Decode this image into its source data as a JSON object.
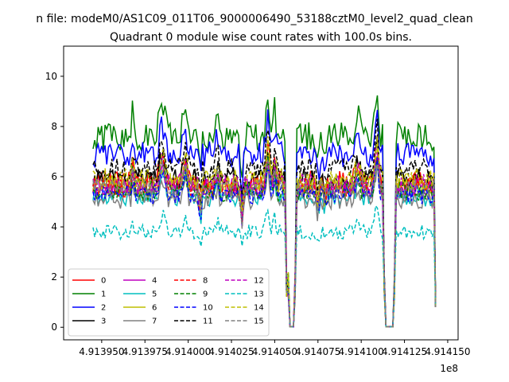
{
  "page": {
    "suptitle": "n file: modeM0/AS1C09_011T06_9000006490_53188cztM0_level2_quad_clean"
  },
  "chart_data": {
    "type": "line",
    "title": "Quadrant 0 module wise count rates with 100.0s bins.",
    "xlabel": "",
    "ylabel": "",
    "x_offset_label": "1e8",
    "x_tick_labels": [
      "4.913950",
      "4.913975",
      "4.914000",
      "4.914025",
      "4.914050",
      "4.914075",
      "4.914100",
      "4.914125",
      "4.914150"
    ],
    "x_tick_values": [
      4.91395,
      4.913975,
      4.914,
      4.914025,
      4.91405,
      4.914075,
      4.9141,
      4.914125,
      4.91415
    ],
    "xlim": [
      4.913928,
      4.914156
    ],
    "x_range_data": [
      4.913945,
      4.914143
    ],
    "gap_ranges": [
      [
        4.914058,
        4.914061
      ],
      [
        4.914114,
        4.914119
      ]
    ],
    "y_tick_labels": [
      "0",
      "2",
      "4",
      "6",
      "8",
      "10"
    ],
    "y_tick_values": [
      0,
      2,
      4,
      6,
      8,
      10
    ],
    "ylim": [
      -0.5,
      11.2
    ],
    "grid": false,
    "legend": {
      "placement": "lower-left",
      "columns": 4
    },
    "series": [
      {
        "name": "0",
        "color": "#ff0000",
        "dash": "solid",
        "mean": 5.8
      },
      {
        "name": "1",
        "color": "#008000",
        "dash": "solid",
        "mean": 7.6
      },
      {
        "name": "2",
        "color": "#0000ff",
        "dash": "solid",
        "mean": 6.9
      },
      {
        "name": "3",
        "color": "#000000",
        "dash": "solid",
        "mean": 5.9
      },
      {
        "name": "4",
        "color": "#bf00bf",
        "dash": "solid",
        "mean": 5.5
      },
      {
        "name": "5",
        "color": "#00bfbf",
        "dash": "solid",
        "mean": 5.2
      },
      {
        "name": "6",
        "color": "#bfbf00",
        "dash": "solid",
        "mean": 5.6
      },
      {
        "name": "7",
        "color": "#808080",
        "dash": "solid",
        "mean": 5.1
      },
      {
        "name": "8",
        "color": "#ff0000",
        "dash": "dashed",
        "mean": 5.6
      },
      {
        "name": "9",
        "color": "#008000",
        "dash": "dashed",
        "mean": 5.4
      },
      {
        "name": "10",
        "color": "#0000ff",
        "dash": "dashed",
        "mean": 5.3
      },
      {
        "name": "11",
        "color": "#000000",
        "dash": "dashed",
        "mean": 6.3
      },
      {
        "name": "12",
        "color": "#bf00bf",
        "dash": "dashed",
        "mean": 5.7
      },
      {
        "name": "13",
        "color": "#00bfbf",
        "dash": "dashed",
        "mean": 3.8
      },
      {
        "name": "14",
        "color": "#bfbf00",
        "dash": "dashed",
        "mean": 5.9
      },
      {
        "name": "15",
        "color": "#808080",
        "dash": "dashed",
        "mean": 5.5
      }
    ]
  }
}
